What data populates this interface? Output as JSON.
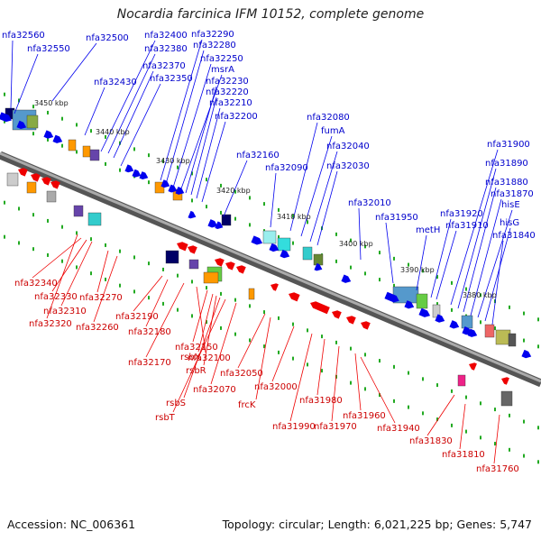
{
  "title": "Nocardia farcinica IFM 10152, complete genome",
  "footer": {
    "accession": "Accession: NC_006361",
    "summary": "Topology: circular; Length: 6,021,225 bp; Genes: 5,747"
  },
  "colors": {
    "forward": "#0000ee",
    "reverse": "#ee0000",
    "forward_label": "#0000cc",
    "reverse_label": "#cc0000",
    "backbone": "#888888",
    "ticks": "#22aa22"
  },
  "scale_labels": [
    "3450 kbp",
    "3440 kbp",
    "3430 kbp",
    "3420 kbp",
    "3410 kbp",
    "3400 kbp",
    "3390 kbp",
    "3380 kbp"
  ],
  "forward_genes": [
    {
      "label": "nfa32560"
    },
    {
      "label": "nfa32550"
    },
    {
      "label": "nfa32500"
    },
    {
      "label": "nfa32430"
    },
    {
      "label": "nfa32400"
    },
    {
      "label": "nfa32380"
    },
    {
      "label": "nfa32370"
    },
    {
      "label": "nfa32350"
    },
    {
      "label": "nfa32290"
    },
    {
      "label": "nfa32280"
    },
    {
      "label": "nfa32250"
    },
    {
      "label": "msrA"
    },
    {
      "label": "nfa32230"
    },
    {
      "label": "nfa32220"
    },
    {
      "label": "nfa32210"
    },
    {
      "label": "nfa32200"
    },
    {
      "label": "nfa32160"
    },
    {
      "label": "nfa32090"
    },
    {
      "label": "nfa32080"
    },
    {
      "label": "fumA"
    },
    {
      "label": "nfa32040"
    },
    {
      "label": "nfa32030"
    },
    {
      "label": "nfa32010"
    },
    {
      "label": "nfa31950"
    },
    {
      "label": "metH"
    },
    {
      "label": "nfa31920"
    },
    {
      "label": "nfa31910"
    },
    {
      "label": "nfa31900"
    },
    {
      "label": "nfa31890"
    },
    {
      "label": "nfa31880"
    },
    {
      "label": "nfa31870"
    },
    {
      "label": "hisE"
    },
    {
      "label": "hisG"
    },
    {
      "label": "nfa31840"
    }
  ],
  "reverse_genes": [
    {
      "label": "nfa32340"
    },
    {
      "label": "nfa32330"
    },
    {
      "label": "nfa32310"
    },
    {
      "label": "nfa32320"
    },
    {
      "label": "nfa32270"
    },
    {
      "label": "nfa32260"
    },
    {
      "label": "nfa32190"
    },
    {
      "label": "nfa32180"
    },
    {
      "label": "nfa32170"
    },
    {
      "label": "nfa32150"
    },
    {
      "label": "rsbX"
    },
    {
      "label": "rsbR"
    },
    {
      "label": "rsbS"
    },
    {
      "label": "rsbT"
    },
    {
      "label": "nfa32100"
    },
    {
      "label": "nfa32070"
    },
    {
      "label": "nfa32050"
    },
    {
      "label": "frcK"
    },
    {
      "label": "nfa32000"
    },
    {
      "label": "nfa31990"
    },
    {
      "label": "nfa31980"
    },
    {
      "label": "nfa31970"
    },
    {
      "label": "nfa31960"
    },
    {
      "label": "nfa31940"
    },
    {
      "label": "nfa31830"
    },
    {
      "label": "nfa31810"
    },
    {
      "label": "nfa31760"
    }
  ]
}
